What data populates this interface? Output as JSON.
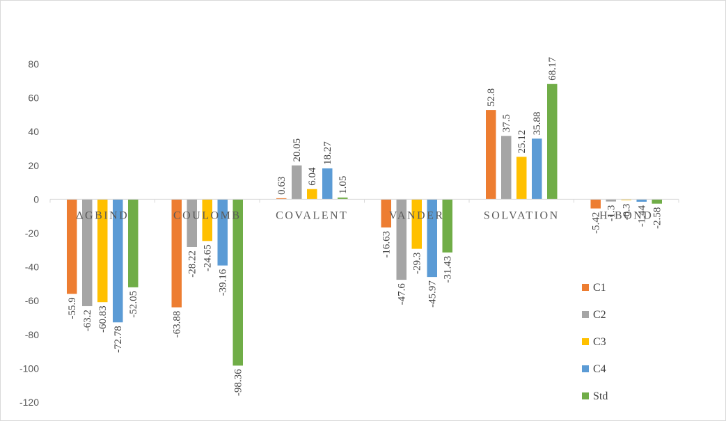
{
  "chart_data": {
    "type": "bar",
    "title": "",
    "xlabel": "",
    "ylabel": "",
    "ylim": [
      -120,
      80
    ],
    "yticks": [
      80,
      60,
      40,
      20,
      0,
      -20,
      -40,
      -60,
      -80,
      -100,
      -120
    ],
    "categories": [
      "ΔGBIND",
      "COULOMB",
      "COVALENT",
      "VANDER",
      "SOLVATION",
      "H-BOND"
    ],
    "series": [
      {
        "name": "C1",
        "color": "#ed7d31",
        "values": [
          -55.9,
          -63.88,
          0.63,
          -16.63,
          52.8,
          -5.42
        ],
        "labels": [
          "-55.9",
          "-63.88",
          "0.63",
          "-16.63",
          "52.8",
          "-5.42"
        ]
      },
      {
        "name": "C2",
        "color": "#a5a5a5",
        "values": [
          -63.2,
          -28.22,
          20.05,
          -47.6,
          37.5,
          -1.3
        ],
        "labels": [
          "-63.2",
          "-28.22",
          "20.05",
          "-47.6",
          "37.5",
          "-1.3"
        ]
      },
      {
        "name": "C3",
        "color": "#ffc000",
        "values": [
          -60.83,
          -24.65,
          6.04,
          -29.3,
          25.12,
          -0.3
        ],
        "labels": [
          "-60.83",
          "-24.65",
          "6.04",
          "-29.3",
          "25.12",
          "-0.3"
        ]
      },
      {
        "name": "C4",
        "color": "#5b9bd5",
        "values": [
          -72.78,
          -39.16,
          18.27,
          -45.97,
          35.88,
          -1.44
        ],
        "labels": [
          "-72.78",
          "-39.16",
          "18.27",
          "-45.97",
          "35.88",
          "-1.44"
        ]
      },
      {
        "name": "Std",
        "color": "#70ad47",
        "values": [
          -52.05,
          -98.36,
          1.05,
          -31.43,
          68.17,
          -2.58
        ],
        "labels": [
          "-52.05",
          "-98.36",
          "1.05",
          "-31.43",
          "68.17",
          "-2.58"
        ]
      }
    ],
    "legend_position": "right",
    "grid": false
  }
}
